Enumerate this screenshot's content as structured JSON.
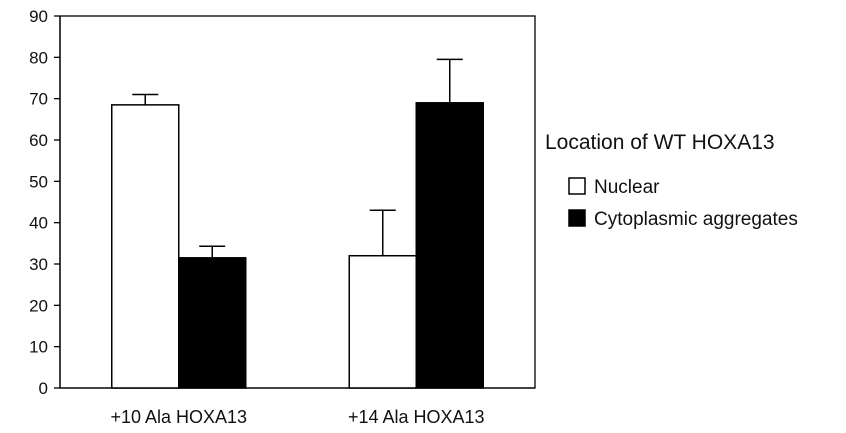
{
  "chart_data": {
    "type": "bar",
    "categories": [
      "+10 Ala HOXA13",
      "+14 Ala HOXA13"
    ],
    "series": [
      {
        "name": "Nuclear",
        "values": [
          68.5,
          32
        ],
        "errors": [
          2.5,
          11
        ],
        "color": "#ffffff"
      },
      {
        "name": "Cytoplasmic aggregates",
        "values": [
          31.5,
          69
        ],
        "errors": [
          2.8,
          10.5
        ],
        "color": "#000000"
      }
    ],
    "ylim": [
      0,
      90
    ],
    "yticks": [
      "0",
      "10",
      "20",
      "30",
      "40",
      "50",
      "60",
      "70",
      "80",
      "90"
    ],
    "grid": false,
    "legend": {
      "title": "Location of WT HOXA13",
      "placement": "right"
    }
  }
}
